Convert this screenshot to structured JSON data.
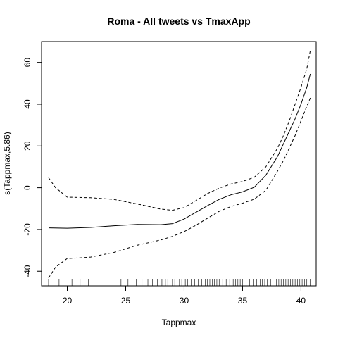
{
  "chart_data": {
    "type": "line",
    "title": "Roma - All tweets vs TmaxApp",
    "xlabel": "Tappmax",
    "ylabel": "s(Tappmax,5.86)",
    "xlim": [
      17.8,
      41.3
    ],
    "ylim": [
      -47,
      70
    ],
    "xticks": [
      20,
      25,
      30,
      35,
      40
    ],
    "yticks": [
      -40,
      -20,
      0,
      20,
      40,
      60
    ],
    "grid": false,
    "legend": "none",
    "series": [
      {
        "role": "estimate",
        "style": "solid",
        "x": [
          18.4,
          20,
          22,
          24,
          26,
          28,
          29,
          30,
          31,
          32,
          33,
          34,
          35,
          36,
          37,
          38,
          38.5,
          39,
          39.5,
          40,
          40.5,
          40.8
        ],
        "y": [
          -19.2,
          -19.4,
          -19.0,
          -18.2,
          -17.6,
          -17.7,
          -17.2,
          -15.0,
          -11.8,
          -8.6,
          -5.6,
          -3.4,
          -2.0,
          0.2,
          6.0,
          15.0,
          21.0,
          27.0,
          33.0,
          40.0,
          48.0,
          54.5
        ]
      },
      {
        "role": "upper-band",
        "style": "dashed",
        "x": [
          18.4,
          19,
          20,
          22,
          24,
          26,
          28,
          29,
          30,
          31,
          32,
          33,
          34,
          35,
          36,
          37,
          38,
          38.5,
          39,
          39.5,
          40,
          40.5,
          40.8
        ],
        "y": [
          4.8,
          0.0,
          -4.5,
          -4.8,
          -5.6,
          -7.8,
          -10.2,
          -10.8,
          -9.5,
          -6.2,
          -2.8,
          -0.2,
          1.8,
          3.0,
          5.0,
          10.0,
          19.0,
          25.0,
          32.0,
          40.0,
          48.0,
          57.0,
          65.7
        ]
      },
      {
        "role": "lower-band",
        "style": "dashed",
        "x": [
          18.4,
          19,
          20,
          21,
          22,
          24,
          26,
          28,
          29,
          30,
          31,
          32,
          33,
          34,
          35,
          36,
          37,
          38,
          38.5,
          39,
          39.5,
          40,
          40.5,
          40.8
        ],
        "y": [
          -43.2,
          -38.0,
          -33.9,
          -33.6,
          -33.2,
          -31.0,
          -27.5,
          -25.0,
          -23.3,
          -21.0,
          -18.0,
          -14.6,
          -11.3,
          -9.0,
          -7.4,
          -5.5,
          -1.2,
          8.0,
          13.0,
          19.0,
          25.0,
          32.0,
          39.0,
          43.0
        ]
      }
    ],
    "rug": [
      18.4,
      19.3,
      20.4,
      21.1,
      21.8,
      24.1,
      24.6,
      25.2,
      25.9,
      26.4,
      26.9,
      27.3,
      27.7,
      28.1,
      28.4,
      28.6,
      28.8,
      29.0,
      29.2,
      29.4,
      29.6,
      29.8,
      30.1,
      30.3,
      30.6,
      30.9,
      31.2,
      31.5,
      31.8,
      32.0,
      32.2,
      32.4,
      32.6,
      32.8,
      33.0,
      33.3,
      33.6,
      33.9,
      34.2,
      34.4,
      34.6,
      34.8,
      35.0,
      35.3,
      35.6,
      35.9,
      36.2,
      36.5,
      36.7,
      36.9,
      37.1,
      37.4,
      37.6,
      37.9,
      38.1,
      38.3,
      38.5,
      38.7,
      38.9,
      39.1,
      39.3,
      39.5,
      39.7,
      39.9,
      40.1,
      40.3,
      40.5,
      40.8
    ]
  }
}
